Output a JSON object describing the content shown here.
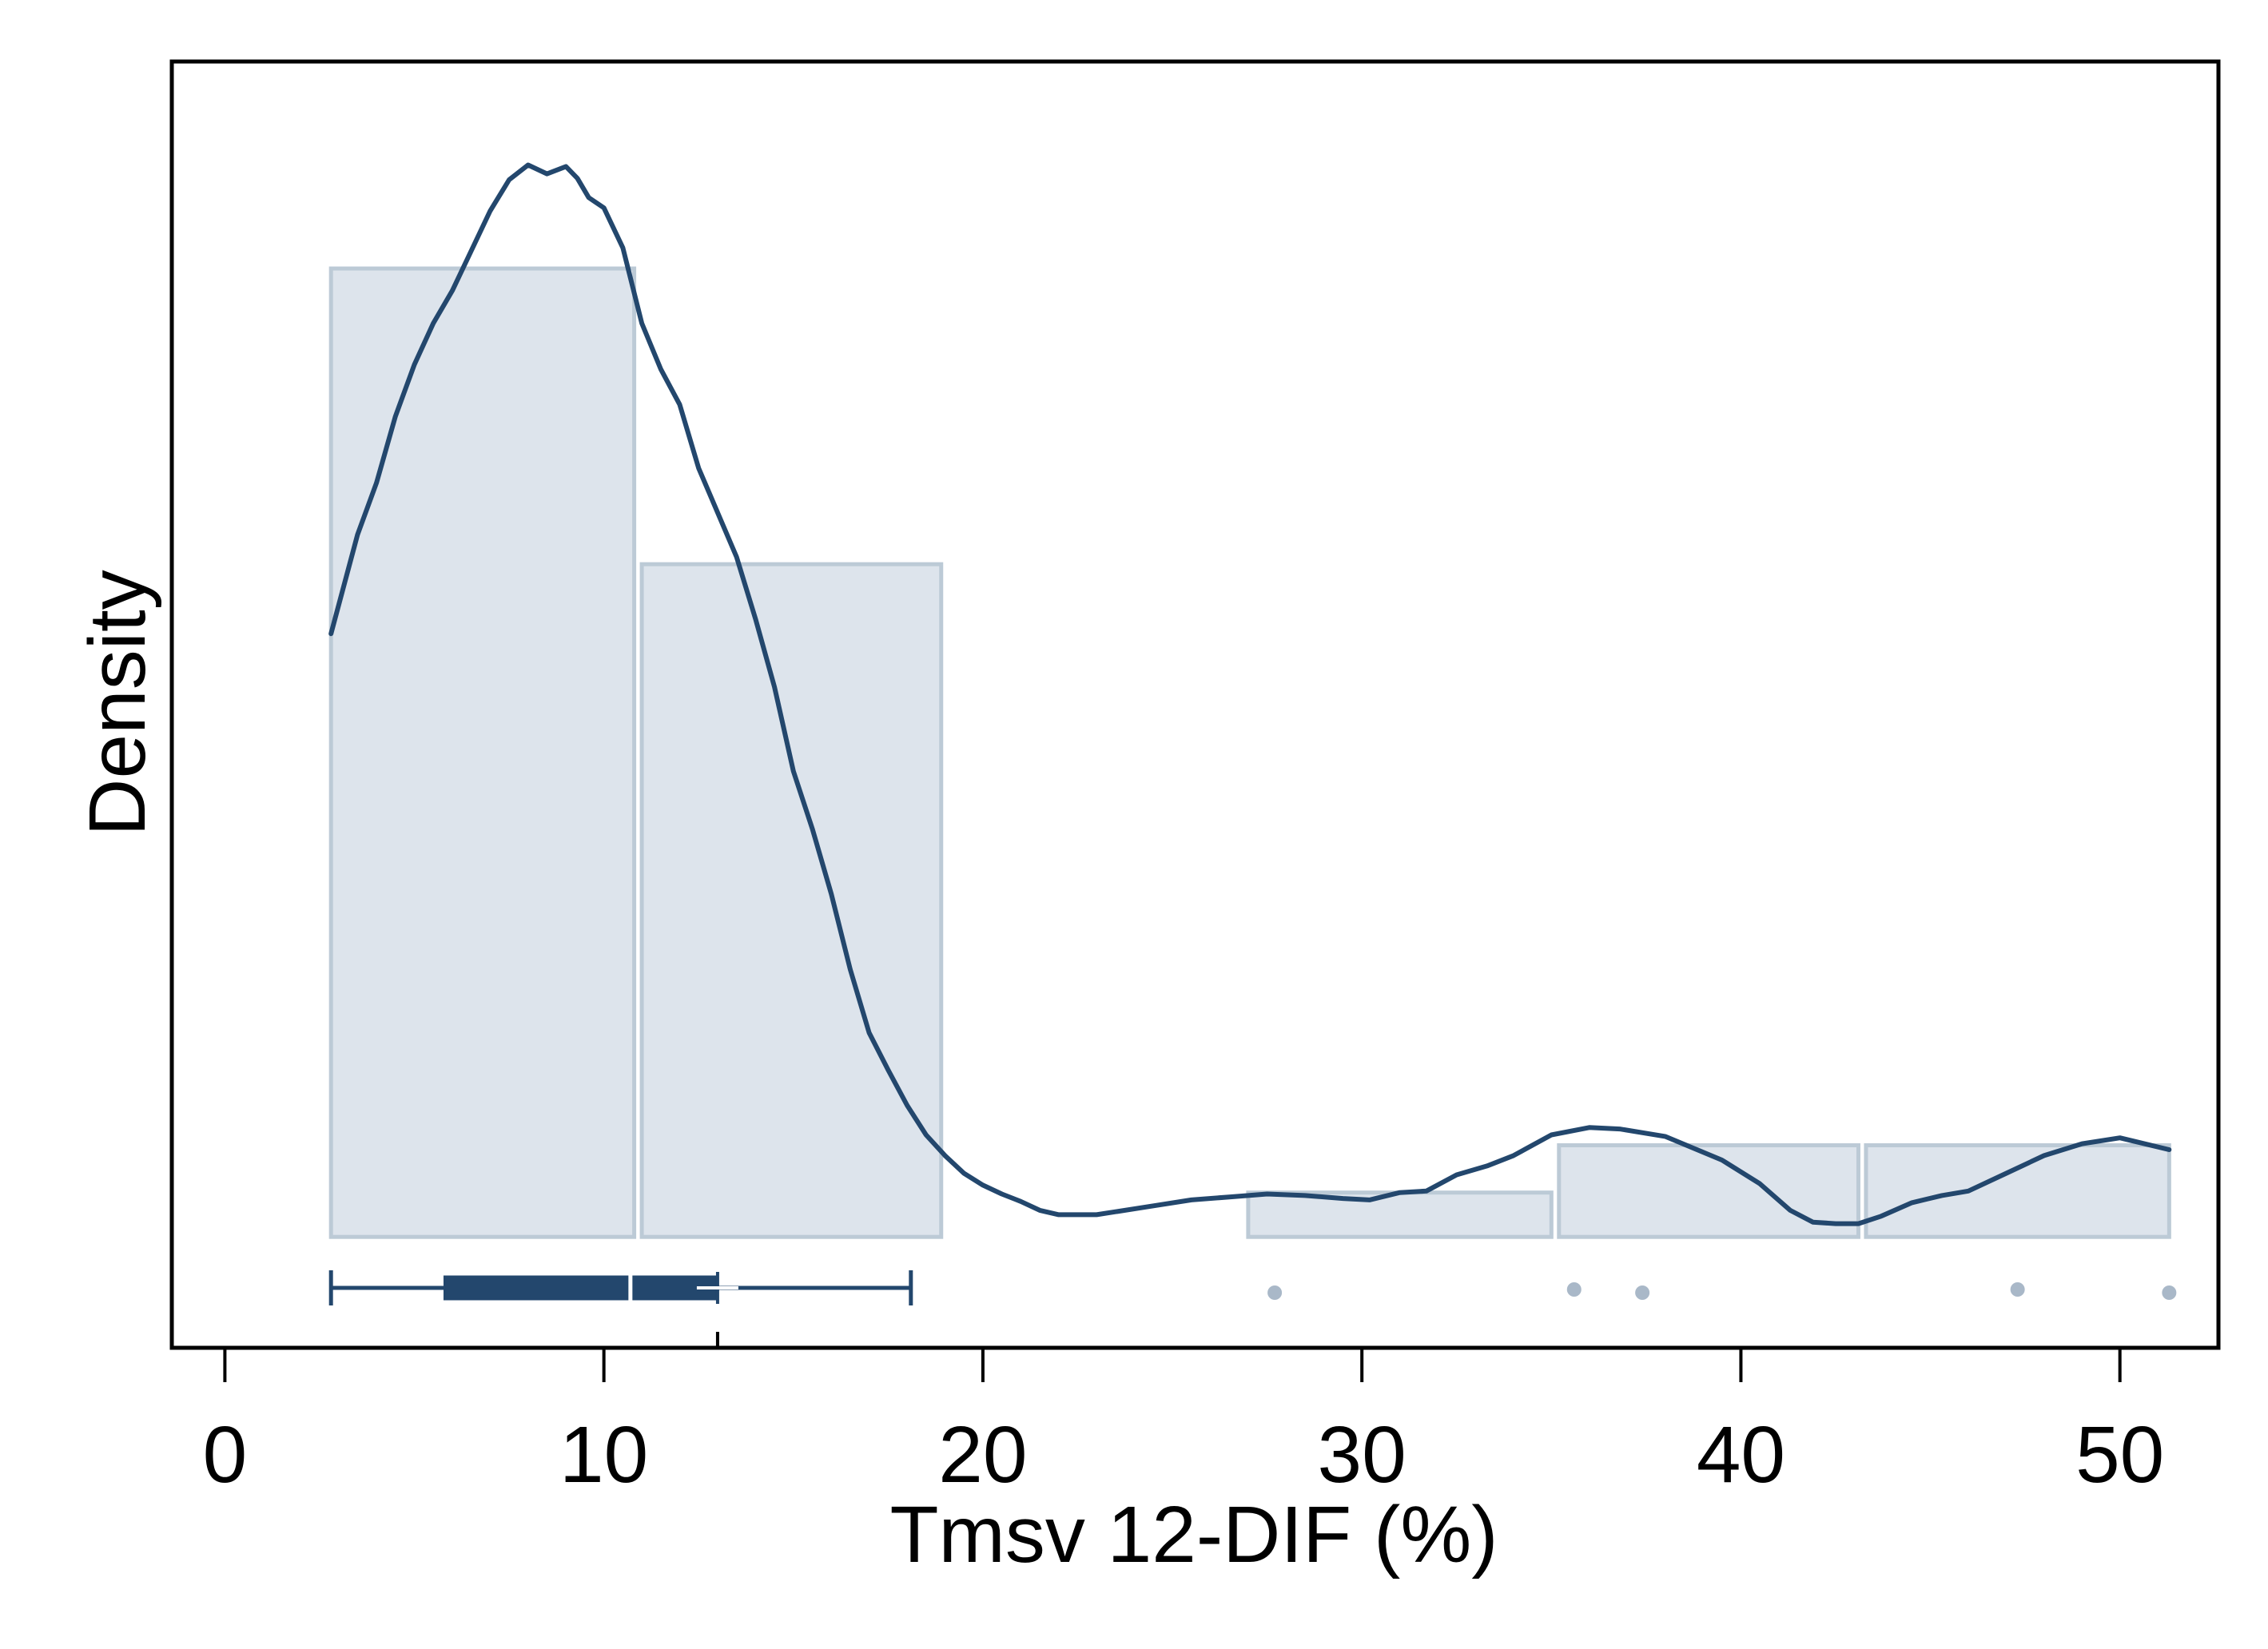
{
  "chart_data": {
    "type": "histogram",
    "title": "",
    "xlabel": "Tmsv 12-DIF (%)",
    "ylabel": "Density",
    "xlim": [
      -1.4,
      52.6
    ],
    "ylim": [
      -0.0075,
      0.0795
    ],
    "x_ticks": [
      0,
      10,
      20,
      30,
      40,
      50
    ],
    "x_tick_labels": [
      "0",
      "10",
      "20",
      "30",
      "40",
      "50"
    ],
    "y_ticks_shown": false,
    "grid": false,
    "legend": "none",
    "colors": {
      "bar_fill": "#dde4ec",
      "bar_stroke": "#bccad6",
      "line": "#23476d",
      "outlier": "#a9b8c8",
      "frame": "#000000"
    },
    "histogram": {
      "bins": [
        {
          "x0": 2.8,
          "x1": 10.8,
          "density": 0.0655
        },
        {
          "x0": 11.0,
          "x1": 18.9,
          "density": 0.0455
        },
        {
          "x0": 27.0,
          "x1": 35.0,
          "density": 0.003
        },
        {
          "x0": 35.2,
          "x1": 43.1,
          "density": 0.0062
        },
        {
          "x0": 43.3,
          "x1": 51.3,
          "density": 0.0062
        }
      ]
    },
    "density_curve": {
      "x": [
        2.8,
        3.5,
        4.0,
        4.5,
        5.0,
        5.5,
        6.0,
        6.5,
        7.0,
        7.5,
        8.0,
        8.5,
        9.0,
        9.3,
        9.6,
        10.0,
        10.5,
        11.0,
        11.5,
        12.0,
        12.5,
        13.0,
        13.5,
        14.0,
        14.5,
        15.0,
        15.5,
        16.0,
        16.5,
        17.0,
        17.5,
        18.0,
        18.5,
        19.0,
        19.5,
        20.0,
        20.5,
        21.0,
        21.5,
        22.0,
        22.5,
        23.0,
        23.5,
        24.5,
        25.5,
        26.5,
        27.5,
        28.5,
        29.5,
        30.2,
        31.0,
        31.7,
        32.5,
        33.3,
        34.0,
        35.0,
        36.0,
        36.8,
        38.0,
        39.5,
        40.5,
        41.3,
        41.9,
        42.5,
        43.1,
        43.7,
        44.5,
        45.3,
        46.0,
        47.0,
        48.0,
        49.0,
        50.0,
        51.3
      ],
      "y": [
        0.0408,
        0.0475,
        0.051,
        0.0555,
        0.059,
        0.0618,
        0.064,
        0.0667,
        0.0694,
        0.0715,
        0.0725,
        0.0719,
        0.0724,
        0.0716,
        0.0703,
        0.0696,
        0.0669,
        0.0618,
        0.0587,
        0.0563,
        0.052,
        0.049,
        0.046,
        0.0418,
        0.0372,
        0.0315,
        0.0276,
        0.0232,
        0.0181,
        0.0138,
        0.0113,
        0.0089,
        0.0069,
        0.0055,
        0.0043,
        0.0035,
        0.0029,
        0.0024,
        0.0018,
        0.0015,
        0.0015,
        0.0015,
        0.0017,
        0.0021,
        0.0025,
        0.0027,
        0.0029,
        0.0028,
        0.0026,
        0.0025,
        0.003,
        0.0031,
        0.0042,
        0.0048,
        0.0055,
        0.0069,
        0.0074,
        0.0073,
        0.0068,
        0.0052,
        0.0036,
        0.0018,
        0.001,
        0.0009,
        0.0009,
        0.0014,
        0.0023,
        0.0028,
        0.0031,
        0.0043,
        0.0055,
        0.0063,
        0.0067,
        0.0059
      ]
    },
    "box_plot": {
      "whisker_low": 2.8,
      "q1": 5.8,
      "median": 10.7,
      "mean": 13.0,
      "q3": 13.0,
      "whisker_high": 18.1,
      "outliers": [
        27.7,
        35.6,
        37.4,
        47.3,
        51.3
      ]
    }
  }
}
